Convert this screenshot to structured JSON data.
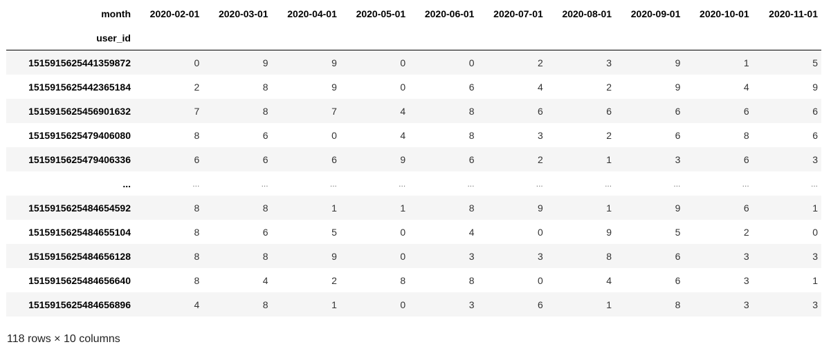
{
  "table": {
    "columns_name": "month",
    "index_name": "user_id",
    "columns": [
      "2020-02-01",
      "2020-03-01",
      "2020-04-01",
      "2020-05-01",
      "2020-06-01",
      "2020-07-01",
      "2020-08-01",
      "2020-09-01",
      "2020-10-01",
      "2020-11-01"
    ],
    "rows": [
      {
        "index": "1515915625441359872",
        "values": [
          "0",
          "9",
          "9",
          "0",
          "0",
          "2",
          "3",
          "9",
          "1",
          "5"
        ]
      },
      {
        "index": "1515915625442365184",
        "values": [
          "2",
          "8",
          "9",
          "0",
          "6",
          "4",
          "2",
          "9",
          "4",
          "9"
        ]
      },
      {
        "index": "1515915625456901632",
        "values": [
          "7",
          "8",
          "7",
          "4",
          "8",
          "6",
          "6",
          "6",
          "6",
          "6"
        ]
      },
      {
        "index": "1515915625479406080",
        "values": [
          "8",
          "6",
          "0",
          "4",
          "8",
          "3",
          "2",
          "6",
          "8",
          "6"
        ]
      },
      {
        "index": "1515915625479406336",
        "values": [
          "6",
          "6",
          "6",
          "9",
          "6",
          "2",
          "1",
          "3",
          "6",
          "3"
        ]
      },
      {
        "index": "...",
        "values": [
          "...",
          "...",
          "...",
          "...",
          "...",
          "...",
          "...",
          "...",
          "...",
          "..."
        ]
      },
      {
        "index": "1515915625484654592",
        "values": [
          "8",
          "8",
          "1",
          "1",
          "8",
          "9",
          "1",
          "9",
          "6",
          "1"
        ]
      },
      {
        "index": "1515915625484655104",
        "values": [
          "8",
          "6",
          "5",
          "0",
          "4",
          "0",
          "9",
          "5",
          "2",
          "0"
        ]
      },
      {
        "index": "1515915625484656128",
        "values": [
          "8",
          "8",
          "9",
          "0",
          "3",
          "3",
          "8",
          "6",
          "3",
          "3"
        ]
      },
      {
        "index": "1515915625484656640",
        "values": [
          "8",
          "4",
          "2",
          "8",
          "8",
          "0",
          "4",
          "6",
          "3",
          "1"
        ]
      },
      {
        "index": "1515915625484656896",
        "values": [
          "4",
          "8",
          "1",
          "0",
          "3",
          "6",
          "1",
          "8",
          "3",
          "3"
        ]
      }
    ]
  },
  "footer": {
    "shape": "118 rows × 10 columns"
  }
}
